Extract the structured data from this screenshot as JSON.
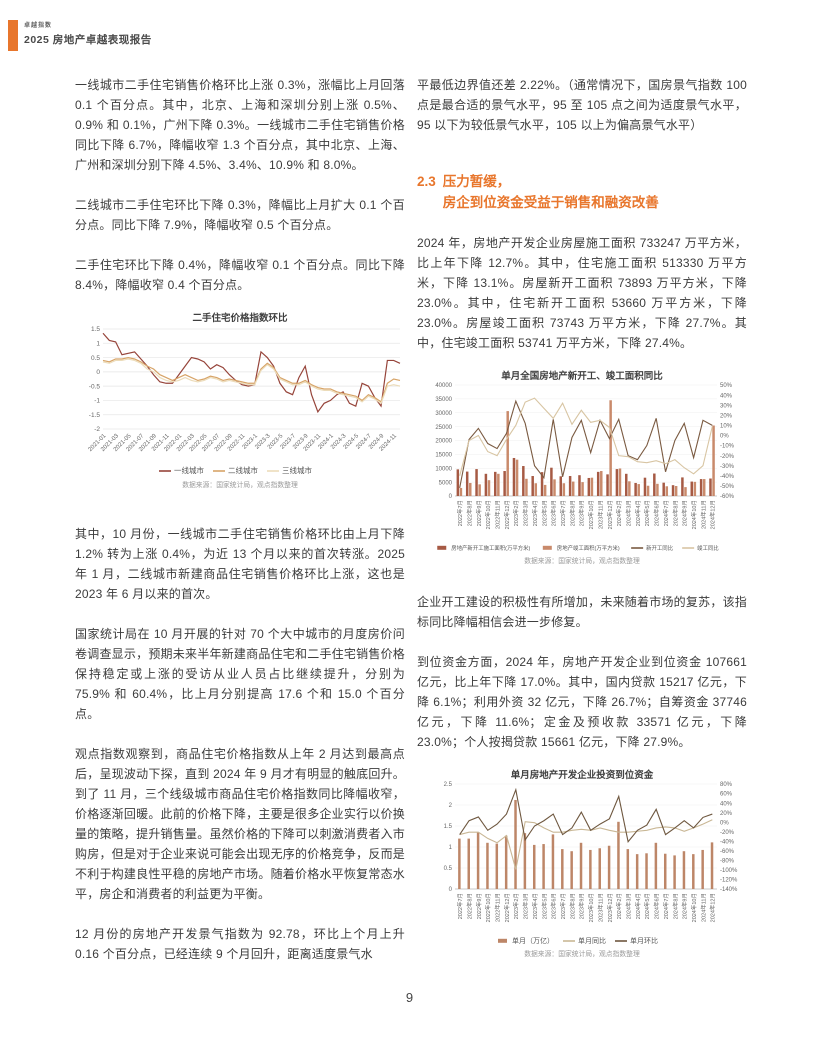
{
  "page": {
    "number": "9"
  },
  "header": {
    "brand_small": "卓越指数",
    "brand_title": "2025 房地产卓越表现报告",
    "accent_color": "#e8762c"
  },
  "left_column": {
    "paragraphs": [
      "一线城市二手住宅销售价格环比上涨 0.3%，涨幅比上月回落 0.1 个百分点。其中，北京、上海和深圳分别上涨 0.5%、0.9% 和 0.1%，广州下降 0.3%。一线城市二手住宅销售价格同比下降 6.7%，降幅收窄 1.3 个百分点，其中北京、上海、广州和深圳分别下降 4.5%、3.4%、10.9% 和 8.0%。",
      "二线城市二手住宅环比下降 0.3%，降幅比上月扩大 0.1 个百分点。同比下降 7.9%，降幅收窄 0.5 个百分点。",
      "二手住宅环比下降 0.4%，降幅收窄 0.1 个百分点。同比下降 8.4%，降幅收窄 0.4 个百分点。",
      "其中，10 月份，一线城市二手住宅销售价格环比由上月下降 1.2% 转为上涨 0.4%，为近 13 个月以来的首次转涨。2025 年 1 月，二线城市新建商品住宅销售价格环比上涨，这也是 2023 年 6 月以来的首次。",
      "国家统计局在 10 月开展的针对 70 个大中城市的月度房价问卷调查显示，预期未来半年新建商品住宅和二手住宅销售价格保持稳定或上涨的受访从业人员占比继续提升，分别为 75.9% 和 60.4%，比上月分别提高 17.6 个和 15.0 个百分点。",
      "观点指数观察到，商品住宅价格指数从上年 2 月达到最高点后，呈现波动下探，直到 2024 年 9 月才有明显的触底回升。到了 11 月，三个线级城市商品住宅价格指数同比降幅收窄，价格逐渐回暖。此前的价格下降，主要是很多企业实行以价换量的策略，提升销售量。虽然价格的下降可以刺激消费者入市购房，但是对于企业来说可能会出现无序的价格竞争，反而是不利于构建良性平稳的房地产市场。随着价格水平恢复常态水平，房企和消费者的利益更为平衡。",
      "12 月份的房地产开发景气指数为 92.78，环比上个月上升 0.16 个百分点，已经连续 9 个月回升，距离适度景气水"
    ]
  },
  "right_column": {
    "paragraphs": [
      "平最低边界值还差 2.22%。（通常情况下，国房景气指数 100 点是最合适的景气水平，95 至 105 点之间为适度景气水平，95 以下为较低景气水平，105 以上为偏高景气水平）",
      "2024 年，房地产开发企业房屋施工面积 733247 万平方米，比上年下降 12.7%。其中，住宅施工面积 513330 万平方米，下降 13.1%。房屋新开工面积 73893 万平方米，下降 23.0%。其中，住宅新开工面积 53660 万平方米，下降 23.0%。房屋竣工面积 73743 万平方米，下降 27.7%。其中，住宅竣工面积 53741 万平方米，下降 27.4%。",
      "企业开工建设的积极性有所增加，未来随着市场的复苏，该指标同比降幅相信会进一步修复。",
      "到位资金方面，2024 年，房地产开发企业到位资金 107661 亿元，比上年下降 17.0%。其中，国内贷款 15217 亿元，下降 6.1%；利用外资 32 亿元，下降 26.7%；自筹资金 37746 亿元，下降 11.6%；定金及预收款 33571 亿元，下降 23.0%；个人按揭贷款 15661 亿元，下降 27.9%。"
    ],
    "heading": {
      "number": "2.3",
      "line1": "压力暂缓，",
      "line2": "房企到位资金受益于销售和融资改善"
    }
  },
  "chart_data": [
    {
      "type": "line",
      "title": "二手住宅价格指数环比",
      "source": "数据来源：国家统计局，观点指数整理",
      "ylim": [
        -2,
        1.5
      ],
      "ystep": 0.5,
      "tick_every": 2,
      "x_tick_labels": [
        "2021-01",
        "2021-03",
        "2021-05",
        "2021-07",
        "2021-09",
        "2021-11",
        "2022-01",
        "2022-03",
        "2022-05",
        "2022-07",
        "2022-09",
        "2022-11",
        "2023-1",
        "2023-3",
        "2023-5",
        "2023-7",
        "2023-9",
        "2023-11",
        "2024-1",
        "2024-3",
        "2024-5",
        "2024-7",
        "2024-9",
        "2024-11"
      ],
      "series": [
        {
          "name": "一线城市",
          "color": "#96443a",
          "values": [
            1.35,
            1.1,
            1.05,
            0.6,
            0.65,
            0.7,
            0.45,
            0.2,
            -0.1,
            -0.35,
            -0.4,
            -0.4,
            -0.1,
            0.2,
            0.5,
            0.45,
            0.35,
            0.1,
            0.25,
            0.15,
            -0.1,
            -0.3,
            -0.45,
            -0.5,
            -0.45,
            0.7,
            0.5,
            0.2,
            -0.4,
            -0.7,
            -0.8,
            -0.2,
            0.2,
            -0.8,
            -1.4,
            -1.1,
            -1.0,
            -0.8,
            -0.7,
            -1.1,
            -1.2,
            -0.4,
            -0.5,
            -0.9,
            -1.2,
            0.4,
            0.4,
            0.3
          ]
        },
        {
          "name": "二线城市",
          "color": "#d7a468",
          "values": [
            0.4,
            0.35,
            0.45,
            0.45,
            0.5,
            0.45,
            0.35,
            0.2,
            0.1,
            -0.1,
            -0.2,
            -0.3,
            -0.2,
            -0.1,
            -0.2,
            -0.3,
            -0.25,
            -0.15,
            -0.2,
            -0.3,
            -0.25,
            -0.3,
            -0.35,
            -0.4,
            -0.4,
            0.1,
            0.3,
            0.15,
            -0.2,
            -0.3,
            -0.4,
            -0.4,
            -0.3,
            -0.45,
            -0.55,
            -0.6,
            -0.6,
            -0.7,
            -0.75,
            -0.8,
            -0.85,
            -1.0,
            -0.8,
            -0.9,
            -1.05,
            -0.4,
            -0.25,
            -0.3
          ]
        },
        {
          "name": "三线城市",
          "color": "#ecdcba",
          "values": [
            0.35,
            0.3,
            0.4,
            0.4,
            0.45,
            0.4,
            0.3,
            0.1,
            0.0,
            -0.2,
            -0.3,
            -0.35,
            -0.3,
            -0.2,
            -0.3,
            -0.35,
            -0.3,
            -0.2,
            -0.25,
            -0.35,
            -0.3,
            -0.35,
            -0.4,
            -0.45,
            -0.45,
            0.05,
            0.25,
            0.1,
            -0.25,
            -0.35,
            -0.45,
            -0.45,
            -0.35,
            -0.5,
            -0.6,
            -0.65,
            -0.65,
            -0.75,
            -0.8,
            -0.85,
            -0.9,
            -1.05,
            -0.85,
            -0.95,
            -1.1,
            -0.5,
            -0.45,
            -0.5
          ]
        }
      ]
    },
    {
      "type": "combo",
      "title": "单月全国房地产新开工、竣工面积同比",
      "source": "数据来源：国家统计局，观点指数整理",
      "left_ylim": [
        0,
        40000
      ],
      "left_step": 5000,
      "right_ylim": [
        -60,
        50
      ],
      "right_step": 10,
      "right_unit": "%",
      "legend_font": 5.4,
      "categories": [
        "2022年7月",
        "2022年8月",
        "2022年9月",
        "2022年10月",
        "2022年11月",
        "2022年12月",
        "2023年2月",
        "2023年3月",
        "2023年4月",
        "2023年5月",
        "2023年6月",
        "2023年7月",
        "2023年8月",
        "2023年9月",
        "2023年10月",
        "2023年11月",
        "2023年12月",
        "2024年2月",
        "2024年3月",
        "2024年4月",
        "2024年5月",
        "2024年6月",
        "2024年7月",
        "2024年8月",
        "2024年9月",
        "2024年10月",
        "2024年11月",
        "2024年12月"
      ],
      "bar_series": [
        {
          "name": "房地产新开工施工面积(万平方米)",
          "color": "#a65a44",
          "values": [
            9600,
            8800,
            9700,
            8000,
            8700,
            9000,
            13700,
            10800,
            7200,
            8600,
            10200,
            7100,
            7200,
            7500,
            6500,
            8700,
            7800,
            9700,
            8000,
            4700,
            6600,
            8100,
            4800,
            3900,
            6700,
            5200,
            6100,
            6300
          ]
        },
        {
          "name": "房地产竣工面积(万平方米)",
          "color": "#c98a6b",
          "values": [
            2900,
            4700,
            4200,
            5700,
            8000,
            30600,
            13100,
            6200,
            4600,
            4000,
            6000,
            4600,
            5200,
            5000,
            6600,
            9000,
            34500,
            9900,
            5300,
            4300,
            3700,
            4400,
            3500,
            3600,
            3200,
            5100,
            6100,
            25400
          ]
        }
      ],
      "line_series": [
        {
          "name": "新开工同比",
          "color": "#7a5a41",
          "values": [
            -52,
            -4,
            7,
            -8,
            -13,
            2,
            34,
            12,
            -30,
            -42,
            16,
            -41,
            -2,
            15,
            -17,
            15,
            -3,
            16,
            -20,
            -24,
            -10,
            17,
            -36,
            -5,
            12,
            -22,
            15,
            10
          ]
        },
        {
          "name": "竣工同比",
          "color": "#d8c5a3",
          "values": [
            -40,
            -5,
            0,
            -16,
            -20,
            -4,
            10,
            33,
            37,
            27,
            17,
            32,
            11,
            25,
            13,
            15,
            8,
            -20,
            -21,
            -26,
            -27,
            -25,
            -28,
            -24,
            -32,
            -38,
            -30,
            9
          ]
        }
      ]
    },
    {
      "type": "combo",
      "title": "单月房地产开发企业投资到位资金",
      "source": "数据来源：国家统计局，观点指数整理",
      "left_ylim": [
        0,
        2.5
      ],
      "left_step": 0.5,
      "right_ylim": [
        -140,
        80
      ],
      "right_step": 20,
      "right_unit": "%",
      "legend_font": 7,
      "categories": [
        "2022年7月",
        "2022年8月",
        "2022年9月",
        "2022年10月",
        "2022年11月",
        "2022年12月",
        "2023年2月",
        "2023年3月",
        "2023年4月",
        "2023年5月",
        "2023年6月",
        "2023年7月",
        "2023年8月",
        "2023年9月",
        "2023年10月",
        "2023年11月",
        "2023年12月",
        "2024年2月",
        "2024年3月",
        "2024年4月",
        "2024年5月",
        "2024年6月",
        "2024年7月",
        "2024年8月",
        "2024年9月",
        "2024年10月",
        "2024年11月",
        "2024年12月"
      ],
      "bar_series": [
        {
          "name": "单月（万亿）",
          "color": "#bd8668",
          "values": [
            1.2,
            1.2,
            1.35,
            1.1,
            1.08,
            1.27,
            2.12,
            1.33,
            1.05,
            1.07,
            1.3,
            0.95,
            0.9,
            1.1,
            0.93,
            0.97,
            1.03,
            1.6,
            0.95,
            0.83,
            0.85,
            1.1,
            0.84,
            0.8,
            0.9,
            0.83,
            0.93,
            1.11
          ]
        }
      ],
      "line_series": [
        {
          "name": "单月同比",
          "color": "#c9b795",
          "values": [
            -26,
            -21,
            -21,
            -34,
            -43,
            -28,
            -99,
            1,
            -1,
            -12,
            -21,
            -21,
            -17,
            -15,
            -17,
            -12,
            -17,
            -21,
            -21,
            -19,
            -17,
            -12,
            -10,
            -12,
            -19,
            -12,
            -4,
            5
          ]
        },
        {
          "name": "单月环比",
          "color": "#6e573f",
          "values": [
            -26,
            3,
            11,
            -17,
            -4,
            17,
            68,
            -37,
            -8,
            3,
            17,
            -26,
            -12,
            21,
            -17,
            -4,
            7,
            54,
            -41,
            -17,
            -6,
            27,
            -26,
            -12,
            3,
            -12,
            10,
            17
          ]
        }
      ]
    }
  ]
}
